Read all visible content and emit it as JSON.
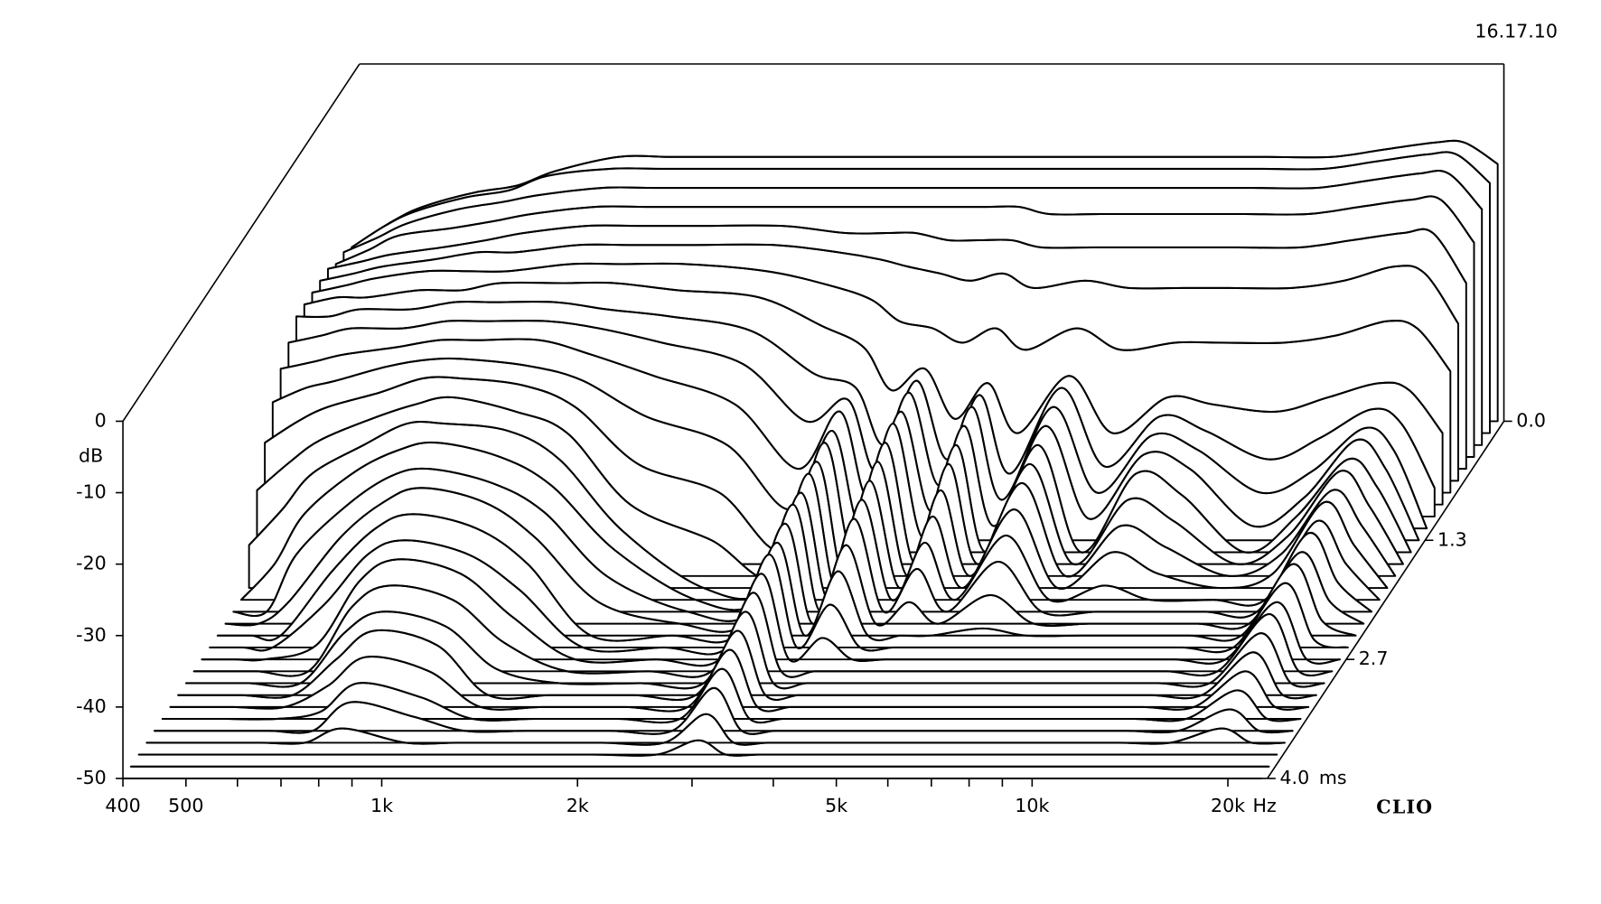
{
  "chart_data": {
    "type": "waterfall",
    "timestamp": "16.17.10",
    "logo": "CLIO",
    "ylabel": "dB",
    "xunit": "Hz",
    "zunit": "ms",
    "log_x": true,
    "color": "#000000",
    "xlim": [
      400,
      23000
    ],
    "ylim": [
      -50,
      0
    ],
    "zlim": [
      0,
      4
    ],
    "xticks": [
      400,
      500,
      {
        "value": 1000,
        "label": "1k"
      },
      {
        "value": 2000,
        "label": "2k"
      },
      {
        "value": 5000,
        "label": "5k"
      },
      {
        "value": 10000,
        "label": "10k"
      },
      {
        "value": 20000,
        "label": "20k"
      }
    ],
    "xminorticks": [
      600,
      700,
      800,
      900,
      3000,
      4000,
      6000,
      7000,
      8000,
      9000
    ],
    "yticks": [
      0,
      -10,
      -20,
      -30,
      -40,
      -50
    ],
    "zticks": [
      {
        "value": 0,
        "label": "0.0"
      },
      {
        "value": 1.333,
        "label": "1.3"
      },
      {
        "value": 2.667,
        "label": "2.7"
      },
      {
        "value": 4,
        "label": "4.0"
      }
    ],
    "x": [
      400,
      450,
      500,
      600,
      700,
      800,
      1000,
      1200,
      1500,
      2000,
      2500,
      2900,
      3200,
      3600,
      4000,
      4500,
      5000,
      6000,
      7000,
      8500,
      10000,
      12500,
      15000,
      18000,
      20000,
      22500
    ],
    "z": [
      0,
      0.133,
      0.267,
      0.4,
      0.533,
      0.667,
      0.8,
      0.933,
      1.067,
      1.2,
      1.333,
      1.467,
      1.6,
      1.733,
      1.867,
      2,
      2.133,
      2.267,
      2.4,
      2.533,
      2.667,
      2.8,
      2.933,
      3.067,
      3.2,
      3.333,
      3.467,
      3.6,
      3.733,
      3.867,
      4
    ],
    "values": [
      [
        -25,
        -22,
        -20,
        -18,
        -17,
        -15,
        -13,
        -13,
        -13,
        -13,
        -13,
        -13,
        -13,
        -13,
        -13,
        -13,
        -13,
        -13,
        -13,
        -13,
        -13,
        -13,
        -12,
        -11,
        -11,
        -14
      ],
      [
        -24,
        -21,
        -19,
        -17,
        -16,
        -14,
        -13,
        -13,
        -13,
        -13,
        -13,
        -13,
        -13,
        -13,
        -13,
        -13,
        -13,
        -13,
        -13,
        -13,
        -13,
        -13,
        -12,
        -11,
        -11,
        -15
      ],
      [
        -23,
        -21,
        -19,
        -17,
        -16,
        -15,
        -14,
        -14,
        -14,
        -14,
        -14,
        -14,
        -14,
        -14,
        -14,
        -14,
        -14,
        -14,
        -14,
        -14,
        -14,
        -14,
        -13,
        -12,
        -12,
        -17
      ],
      [
        -23,
        -21,
        -19,
        -18,
        -17,
        -16,
        -15,
        -15,
        -15,
        -15,
        -15,
        -15,
        -15,
        -15,
        -15,
        -15,
        -16,
        -16,
        -16,
        -16,
        -16,
        -16,
        -15,
        -14,
        -14,
        -20
      ],
      [
        -22,
        -21,
        -20,
        -19,
        -18,
        -17,
        -16,
        -16,
        -16,
        -16,
        -17,
        -17,
        -17,
        -18,
        -18,
        -18,
        -19,
        -19,
        -19,
        -19,
        -19,
        -19,
        -18,
        -17,
        -17,
        -24
      ],
      [
        -22,
        -21,
        -20,
        -19,
        -18,
        -18,
        -17,
        -17,
        -17,
        -17,
        -18,
        -19,
        -20,
        -21,
        -22,
        -21,
        -23,
        -22,
        -23,
        -23,
        -23,
        -23,
        -22,
        -20,
        -21,
        -28
      ],
      [
        -22,
        -21,
        -20,
        -19,
        -19,
        -19,
        -18,
        -18,
        -18,
        -19,
        -21,
        -23,
        -26,
        -27,
        -29,
        -27,
        -30,
        -27,
        -30,
        -29,
        -29,
        -29,
        -28,
        -26,
        -27,
        -33
      ],
      [
        -22,
        -21,
        -21,
        -20,
        -20,
        -19,
        -19,
        -19,
        -20,
        -21,
        -25,
        -28,
        -34,
        -31,
        -38,
        -33,
        -40,
        -32,
        -40,
        -35,
        -36,
        -37,
        -35,
        -33,
        -34,
        -40
      ],
      [
        -22,
        -22,
        -21,
        -21,
        -20,
        -20,
        -20,
        -21,
        -22,
        -24,
        -30,
        -32,
        -40,
        -31,
        -42,
        -33,
        -44,
        -32,
        -43,
        -36,
        -38,
        -42,
        -39,
        -35,
        -37,
        -46
      ],
      [
        -24,
        -23,
        -22,
        -22,
        -21,
        -21,
        -21,
        -22,
        -24,
        -27,
        -35,
        -32,
        -42,
        -31,
        -44,
        -33,
        -46,
        -33,
        -45,
        -37,
        -39,
        -45,
        -42,
        -36,
        -39,
        -50
      ],
      [
        -26,
        -25,
        -24,
        -23,
        -22,
        -22,
        -22,
        -24,
        -27,
        -31,
        -40,
        -32,
        -44,
        -32,
        -46,
        -34,
        -48,
        -34,
        -47,
        -38,
        -40,
        -48,
        -44,
        -36,
        -40,
        -50
      ],
      [
        -29,
        -27,
        -26,
        -24,
        -23,
        -23,
        -24,
        -26,
        -31,
        -35,
        -44,
        -33,
        -46,
        -32,
        -48,
        -35,
        -50,
        -35,
        -50,
        -39,
        -42,
        -50,
        -45,
        -37,
        -41,
        -50
      ],
      [
        -33,
        -30,
        -28,
        -26,
        -24,
        -24,
        -25,
        -28,
        -36,
        -40,
        -48,
        -33,
        -48,
        -33,
        -50,
        -36,
        -50,
        -36,
        -50,
        -41,
        -44,
        -50,
        -46,
        -37,
        -42,
        -50
      ],
      [
        -38,
        -34,
        -31,
        -28,
        -26,
        -25,
        -27,
        -30,
        -40,
        -45,
        -50,
        -34,
        -50,
        -34,
        -50,
        -38,
        -50,
        -37,
        -50,
        -43,
        -46,
        -50,
        -47,
        -38,
        -43,
        -50
      ],
      [
        -44,
        -39,
        -34,
        -30,
        -27,
        -27,
        -28,
        -32,
        -42,
        -50,
        -50,
        -34,
        -50,
        -35,
        -50,
        -40,
        -50,
        -39,
        -50,
        -45,
        -48,
        -50,
        -48,
        -38,
        -44,
        -50
      ],
      [
        -50,
        -45,
        -38,
        -32,
        -29,
        -28,
        -30,
        -34,
        -43,
        -50,
        -50,
        -35,
        -50,
        -36,
        -50,
        -42,
        -50,
        -41,
        -50,
        -48,
        -50,
        -50,
        -50,
        -39,
        -45,
        -50
      ],
      [
        -50,
        -50,
        -42,
        -35,
        -31,
        -30,
        -32,
        -36,
        -45,
        -50,
        -50,
        -35,
        -50,
        -37,
        -50,
        -44,
        -50,
        -43,
        -50,
        -50,
        -50,
        -50,
        -50,
        -39,
        -46,
        -50
      ],
      [
        -50,
        -50,
        -47,
        -38,
        -33,
        -31,
        -33,
        -38,
        -47,
        -50,
        -50,
        -36,
        -50,
        -39,
        -50,
        -47,
        -50,
        -46,
        -50,
        -50,
        -50,
        -50,
        -50,
        -40,
        -47,
        -50
      ],
      [
        -50,
        -50,
        -50,
        -41,
        -35,
        -33,
        -35,
        -40,
        -50,
        -50,
        -50,
        -37,
        -50,
        -41,
        -50,
        -50,
        -50,
        -49,
        -50,
        -50,
        -50,
        -50,
        -50,
        -40,
        -48,
        -50
      ],
      [
        -50,
        -50,
        -50,
        -44,
        -37,
        -35,
        -37,
        -42,
        -50,
        -50,
        -50,
        -37,
        -50,
        -44,
        -50,
        -50,
        -50,
        -50,
        -50,
        -50,
        -50,
        -50,
        -50,
        -41,
        -49,
        -50
      ],
      [
        -50,
        -50,
        -50,
        -48,
        -39,
        -36,
        -38,
        -44,
        -50,
        -50,
        -50,
        -38,
        -50,
        -47,
        -50,
        -50,
        -50,
        -50,
        -50,
        -50,
        -50,
        -50,
        -50,
        -42,
        -50,
        -50
      ],
      [
        -50,
        -50,
        -50,
        -50,
        -41,
        -38,
        -40,
        -46,
        -50,
        -50,
        -50,
        -39,
        -50,
        -50,
        -50,
        -50,
        -50,
        -50,
        -50,
        -50,
        -50,
        -50,
        -50,
        -42,
        -50,
        -50
      ],
      [
        -50,
        -50,
        -50,
        -50,
        -43,
        -40,
        -42,
        -48,
        -50,
        -50,
        -50,
        -40,
        -50,
        -50,
        -50,
        -50,
        -50,
        -50,
        -50,
        -50,
        -50,
        -50,
        -50,
        -43,
        -50,
        -50
      ],
      [
        -50,
        -50,
        -50,
        -50,
        -45,
        -41,
        -43,
        -50,
        -50,
        -50,
        -50,
        -41,
        -50,
        -50,
        -50,
        -50,
        -50,
        -50,
        -50,
        -50,
        -50,
        -50,
        -50,
        -44,
        -50,
        -50
      ],
      [
        -50,
        -50,
        -50,
        -50,
        -47,
        -43,
        -45,
        -50,
        -50,
        -50,
        -50,
        -42,
        -50,
        -50,
        -50,
        -50,
        -50,
        -50,
        -50,
        -50,
        -50,
        -50,
        -50,
        -45,
        -50,
        -50
      ],
      [
        -50,
        -50,
        -50,
        -50,
        -49,
        -45,
        -47,
        -50,
        -50,
        -50,
        -50,
        -43,
        -50,
        -50,
        -50,
        -50,
        -50,
        -50,
        -50,
        -50,
        -50,
        -50,
        -50,
        -46,
        -50,
        -50
      ],
      [
        -50,
        -50,
        -50,
        -50,
        -50,
        -46,
        -48,
        -50,
        -50,
        -50,
        -50,
        -44,
        -50,
        -50,
        -50,
        -50,
        -50,
        -50,
        -50,
        -50,
        -50,
        -50,
        -50,
        -47,
        -50,
        -50
      ],
      [
        -50,
        -50,
        -50,
        -50,
        -50,
        -48,
        -50,
        -50,
        -50,
        -50,
        -50,
        -46,
        -50,
        -50,
        -50,
        -50,
        -50,
        -50,
        -50,
        -50,
        -50,
        -50,
        -50,
        -48,
        -50,
        -50
      ],
      [
        -50,
        -50,
        -50,
        -50,
        -50,
        -50,
        -50,
        -50,
        -50,
        -50,
        -50,
        -48,
        -50,
        -50,
        -50,
        -50,
        -50,
        -50,
        -50,
        -50,
        -50,
        -50,
        -50,
        -50,
        -50,
        -50
      ],
      [
        -50,
        -50,
        -50,
        -50,
        -50,
        -50,
        -50,
        -50,
        -50,
        -50,
        -50,
        -50,
        -50,
        -50,
        -50,
        -50,
        -50,
        -50,
        -50,
        -50,
        -50,
        -50,
        -50,
        -50,
        -50,
        -50
      ],
      [
        -50,
        -50,
        -50,
        -50,
        -50,
        -50,
        -50,
        -50,
        -50,
        -50,
        -50,
        -50,
        -50,
        -50,
        -50,
        -50,
        -50,
        -50,
        -50,
        -50,
        -50,
        -50,
        -50,
        -50,
        -50,
        -50
      ]
    ]
  }
}
